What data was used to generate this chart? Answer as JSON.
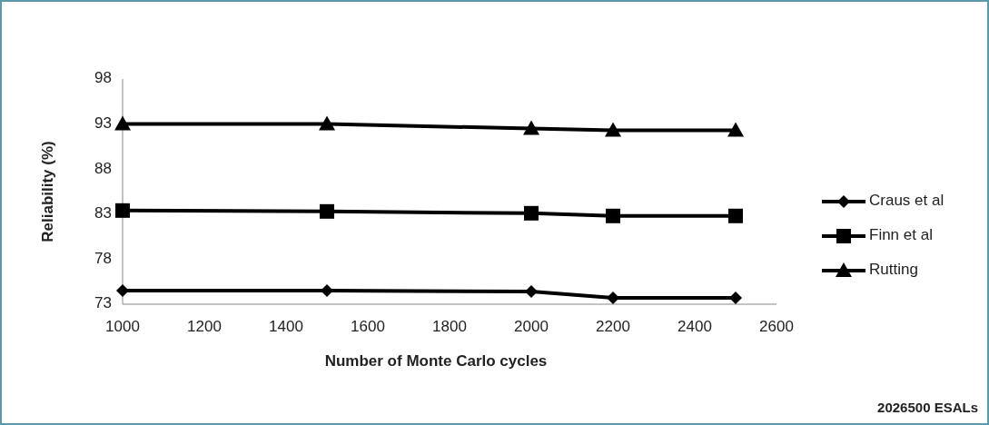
{
  "chart_data": {
    "type": "line",
    "xlabel": "Number of Monte Carlo cycles",
    "ylabel": "Reliability (%)",
    "x": [
      1000,
      1500,
      2000,
      2200,
      2500
    ],
    "series": [
      {
        "name": "Craus et al",
        "color": "#000000",
        "marker": "diamond",
        "values": [
          74.5,
          74.5,
          74.4,
          73.7,
          73.7
        ]
      },
      {
        "name": "Finn et al",
        "color": "#000000",
        "marker": "square",
        "values": [
          83.4,
          83.3,
          83.1,
          82.8,
          82.8
        ]
      },
      {
        "name": "Rutting",
        "color": "#000000",
        "marker": "triangle",
        "values": [
          93.0,
          93.0,
          92.5,
          92.3,
          92.3
        ]
      }
    ],
    "xlim": [
      1000,
      2600
    ],
    "xticks": [
      1000,
      1200,
      1400,
      1600,
      1800,
      2000,
      2200,
      2400,
      2600
    ],
    "ylim": [
      73,
      98
    ],
    "yticks": [
      73,
      78,
      83,
      88,
      93,
      98
    ],
    "grid": false,
    "legend": "right",
    "line_style": "solid",
    "annotations": [
      "2026500 ESALs"
    ]
  }
}
